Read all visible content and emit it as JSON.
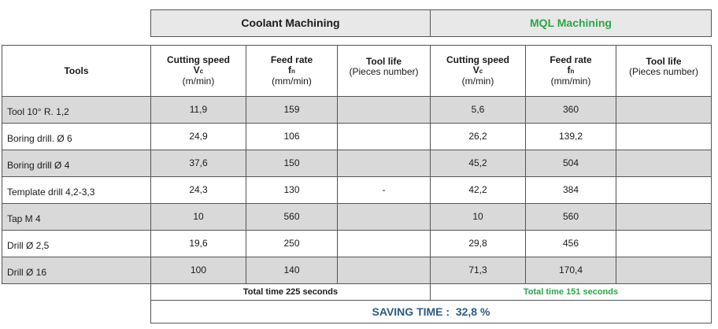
{
  "group_headers": {
    "coolant": "Coolant Machining",
    "mql": "MQL Machining"
  },
  "columns": {
    "tools": "Tools",
    "cutting_speed": {
      "line1": "Cutting speed",
      "line2": "V",
      "sub": "c",
      "unit": "(m/min)"
    },
    "feed_rate": {
      "line1": "Feed rate",
      "line2": "f",
      "sub": "n",
      "unit": "(mm/min)"
    },
    "tool_life": {
      "line1": "Tool life",
      "unit": "(Pieces number)"
    }
  },
  "rows": [
    {
      "tool": "Tool 10° R. 1,2",
      "c_speed": "11,9",
      "c_feed": "159",
      "c_life": "",
      "m_speed": "5,6",
      "m_feed": "360",
      "m_life": ""
    },
    {
      "tool": "Boring drill. Ø 6",
      "c_speed": "24,9",
      "c_feed": "106",
      "c_life": "",
      "m_speed": "26,2",
      "m_feed": "139,2",
      "m_life": ""
    },
    {
      "tool": "Boring drill Ø 4",
      "c_speed": "37,6",
      "c_feed": "150",
      "c_life": "",
      "m_speed": "45,2",
      "m_feed": "504",
      "m_life": ""
    },
    {
      "tool": "Template drill 4,2-3,3",
      "c_speed": "24,3",
      "c_feed": "130",
      "c_life": "-",
      "m_speed": "42,2",
      "m_feed": "384",
      "m_life": ""
    },
    {
      "tool": "Tap M 4",
      "c_speed": "10",
      "c_feed": "560",
      "c_life": "",
      "m_speed": "10",
      "m_feed": "560",
      "m_life": ""
    },
    {
      "tool": "Drill Ø 2,5",
      "c_speed": "19,6",
      "c_feed": "250",
      "c_life": "",
      "m_speed": "29,8",
      "m_feed": "456",
      "m_life": ""
    },
    {
      "tool": "Drill Ø 16",
      "c_speed": "100",
      "c_feed": "140",
      "c_life": "",
      "m_speed": "71,3",
      "m_feed": "170,4",
      "m_life": ""
    }
  ],
  "totals": {
    "coolant": "Total time 225 seconds",
    "mql": "Total time 151 seconds"
  },
  "saving": "SAVING TIME :  32,8 %",
  "colors": {
    "mql_green": "#2aa646",
    "saving_blue": "#2e5a86",
    "row_grey": "#d9d9d9",
    "header_grey": "#e8e8e8"
  }
}
